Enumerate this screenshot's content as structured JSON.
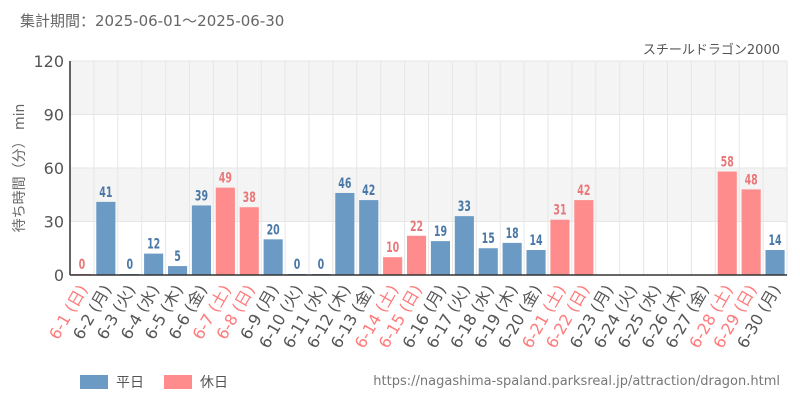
{
  "header": {
    "period": "集計期間：2025-06-01～2025-06-30"
  },
  "colors": {
    "weekday": "#6b9ac4",
    "holiday": "#ff8c8c",
    "weekday_label": "#4a78a6",
    "holiday_label": "#e8787a",
    "weekday_tick": "#555555",
    "holiday_tick": "#ff7a7a",
    "grid": "#e6e6e6",
    "band": "#f4f4f4"
  },
  "legend": {
    "weekday": "平日",
    "holiday": "休日"
  },
  "footer": {
    "url": "https://nagashima-spaland.parksreal.jp/attraction/dragon.html"
  },
  "chart_data": {
    "type": "bar",
    "title": "スチールドラゴン2000",
    "ylabel": "待ち時間（分） min",
    "ylim": [
      0,
      120
    ],
    "yticks": [
      0,
      30,
      60,
      90,
      120
    ],
    "grid": true,
    "legend_position": "bottom-left",
    "categories": [
      "6-1 (日)",
      "6-2 (月)",
      "6-3 (火)",
      "6-4 (水)",
      "6-5 (木)",
      "6-6 (金)",
      "6-7 (土)",
      "6-8 (日)",
      "6-9 (月)",
      "6-10 (火)",
      "6-11 (水)",
      "6-12 (木)",
      "6-13 (金)",
      "6-14 (土)",
      "6-15 (日)",
      "6-16 (月)",
      "6-17 (火)",
      "6-18 (水)",
      "6-19 (木)",
      "6-20 (金)",
      "6-21 (土)",
      "6-22 (日)",
      "6-23 (月)",
      "6-24 (火)",
      "6-25 (水)",
      "6-26 (木)",
      "6-27 (金)",
      "6-28 (土)",
      "6-29 (日)",
      "6-30 (月)"
    ],
    "series": [
      {
        "name": "平日",
        "values": [
          null,
          41,
          0,
          12,
          5,
          39,
          null,
          null,
          20,
          0,
          0,
          46,
          42,
          null,
          null,
          19,
          33,
          15,
          18,
          14,
          null,
          null,
          null,
          null,
          null,
          null,
          null,
          null,
          null,
          14
        ]
      },
      {
        "name": "休日",
        "values": [
          0,
          null,
          null,
          null,
          null,
          null,
          49,
          38,
          null,
          null,
          null,
          null,
          null,
          10,
          22,
          null,
          null,
          null,
          null,
          null,
          31,
          42,
          null,
          null,
          null,
          null,
          null,
          58,
          48,
          null
        ]
      }
    ]
  }
}
